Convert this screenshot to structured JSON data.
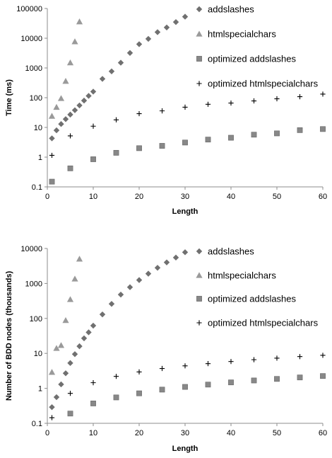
{
  "chart_data": [
    {
      "type": "scatter",
      "ylabel": "Time (ms)",
      "xlabel": "Length",
      "xlim": [
        0,
        60
      ],
      "ylim": [
        0.1,
        100000
      ],
      "yscale": "log",
      "x_ticks": [
        "0",
        "10",
        "20",
        "30",
        "40",
        "50",
        "60"
      ],
      "y_ticks": [
        "0.1",
        "1",
        "10",
        "100",
        "1000",
        "10000",
        "100000"
      ],
      "grid": false,
      "legend_position": "right",
      "series": [
        {
          "name": "addslashes",
          "marker": "diamond",
          "color": "#707070",
          "x": [
            1,
            2,
            3,
            4,
            5,
            6,
            7,
            8,
            9,
            10,
            12,
            14,
            16,
            18,
            20,
            22,
            24,
            26,
            28,
            30
          ],
          "y": [
            4.3,
            8,
            13,
            19,
            27,
            38,
            55,
            80,
            115,
            160,
            430,
            770,
            1500,
            3200,
            6300,
            9500,
            16000,
            23000,
            35000,
            53000
          ]
        },
        {
          "name": "htmlspecialchars",
          "marker": "triangle",
          "color": "#9a9a9a",
          "x": [
            1,
            2,
            3,
            4,
            5,
            6,
            7
          ],
          "y": [
            24,
            48,
            95,
            360,
            1500,
            7700,
            36000
          ]
        },
        {
          "name": "optimized addslashes",
          "marker": "square",
          "color": "#888888",
          "x": [
            1,
            5,
            10,
            15,
            20,
            25,
            30,
            35,
            40,
            45,
            50,
            55,
            60
          ],
          "y": [
            0.15,
            0.42,
            0.85,
            1.4,
            2.0,
            2.4,
            3.1,
            3.9,
            4.5,
            5.7,
            6.3,
            8.1,
            8.8
          ]
        },
        {
          "name": "optimized htmlspecialchars",
          "marker": "plus",
          "color": "#000000",
          "x": [
            1,
            5,
            10,
            15,
            20,
            25,
            30,
            35,
            40,
            45,
            50,
            55,
            60
          ],
          "y": [
            1.15,
            5.2,
            11,
            18,
            29,
            36,
            48,
            60,
            66,
            78,
            92,
            108,
            132
          ]
        }
      ]
    },
    {
      "type": "scatter",
      "ylabel": "Number of BDD nodes (thousands)",
      "xlabel": "Length",
      "xlim": [
        0,
        60
      ],
      "ylim": [
        0.1,
        10000
      ],
      "yscale": "log",
      "x_ticks": [
        "0",
        "10",
        "20",
        "30",
        "40",
        "50",
        "60"
      ],
      "y_ticks": [
        "0.1",
        "1",
        "10",
        "100",
        "1000",
        "10000"
      ],
      "grid": false,
      "legend_position": "right",
      "series": [
        {
          "name": "addslashes",
          "marker": "diamond",
          "color": "#707070",
          "x": [
            1,
            2,
            3,
            4,
            5,
            6,
            7,
            8,
            9,
            10,
            12,
            14,
            16,
            18,
            20,
            22,
            24,
            26,
            28,
            30
          ],
          "y": [
            0.29,
            0.56,
            1.3,
            2.7,
            5.3,
            9.5,
            16,
            27,
            40,
            62,
            130,
            260,
            480,
            780,
            1250,
            1900,
            2800,
            4000,
            5500,
            7800
          ]
        },
        {
          "name": "htmlspecialchars",
          "marker": "triangle",
          "color": "#9a9a9a",
          "x": [
            1,
            2,
            3,
            4,
            5,
            6,
            7
          ],
          "y": [
            2.9,
            14,
            17,
            88,
            350,
            1350,
            5000
          ]
        },
        {
          "name": "optimized addslashes",
          "marker": "square",
          "color": "#888888",
          "x": [
            5,
            10,
            15,
            20,
            25,
            30,
            35,
            40,
            45,
            50,
            55,
            60
          ],
          "y": [
            0.19,
            0.37,
            0.55,
            0.72,
            0.92,
            1.1,
            1.28,
            1.48,
            1.68,
            1.86,
            2.05,
            2.25
          ]
        },
        {
          "name": "optimized htmlspecialchars",
          "marker": "plus",
          "color": "#000000",
          "x": [
            1,
            5,
            10,
            15,
            20,
            25,
            30,
            35,
            40,
            45,
            50,
            55,
            60
          ],
          "y": [
            0.145,
            0.72,
            1.45,
            2.2,
            2.95,
            3.7,
            4.4,
            5.1,
            5.85,
            6.6,
            7.3,
            8.1,
            8.8
          ]
        }
      ]
    }
  ]
}
